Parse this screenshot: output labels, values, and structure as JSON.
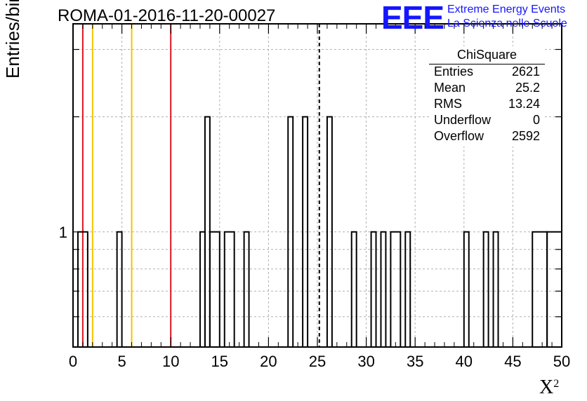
{
  "title": "ROMA-01-2016-11-20-00027",
  "logo": {
    "mark": "EEE",
    "line1": "Extreme Energy Events",
    "line2": "La Scienza nelle Scuole",
    "color": "#1515ff"
  },
  "stats_box": {
    "title": "ChiSquare",
    "rows": [
      {
        "key": "Entries",
        "value": "2621"
      },
      {
        "key": "Mean",
        "value": "25.2"
      },
      {
        "key": "RMS",
        "value": "13.24"
      },
      {
        "key": "Underflow",
        "value": "0"
      },
      {
        "key": "Overflow",
        "value": "2592"
      }
    ]
  },
  "chart_data": {
    "type": "histogram",
    "title": "ROMA-01-2016-11-20-00027",
    "xlabel": "X",
    "xlabel_superscript": "2",
    "ylabel": "Entries/bin",
    "xlim": [
      0,
      50
    ],
    "ylim": [
      0.5,
      3.5
    ],
    "yscale": "log",
    "grid": true,
    "x_ticks": [
      "0",
      "5",
      "10",
      "15",
      "20",
      "25",
      "30",
      "35",
      "40",
      "45",
      "50"
    ],
    "y_tick_labels": [
      "1"
    ],
    "bins": [
      {
        "x0": 0.5,
        "x1": 1.5,
        "count": 1
      },
      {
        "x0": 4.5,
        "x1": 5.0,
        "count": 1
      },
      {
        "x0": 13.0,
        "x1": 13.5,
        "count": 1
      },
      {
        "x0": 13.5,
        "x1": 14.0,
        "count": 2
      },
      {
        "x0": 14.0,
        "x1": 15.0,
        "count": 1
      },
      {
        "x0": 15.5,
        "x1": 16.5,
        "count": 1
      },
      {
        "x0": 17.5,
        "x1": 18.0,
        "count": 1
      },
      {
        "x0": 22.0,
        "x1": 22.5,
        "count": 2
      },
      {
        "x0": 23.5,
        "x1": 24.0,
        "count": 2
      },
      {
        "x0": 26.0,
        "x1": 26.5,
        "count": 2
      },
      {
        "x0": 28.5,
        "x1": 29.0,
        "count": 1
      },
      {
        "x0": 30.5,
        "x1": 31.0,
        "count": 1
      },
      {
        "x0": 31.5,
        "x1": 32.0,
        "count": 1
      },
      {
        "x0": 32.5,
        "x1": 33.5,
        "count": 1
      },
      {
        "x0": 34.0,
        "x1": 34.5,
        "count": 1
      },
      {
        "x0": 40.0,
        "x1": 40.5,
        "count": 1
      },
      {
        "x0": 42.0,
        "x1": 42.5,
        "count": 1
      },
      {
        "x0": 43.0,
        "x1": 43.5,
        "count": 1
      },
      {
        "x0": 47.0,
        "x1": 48.5,
        "count": 1
      },
      {
        "x0": 48.5,
        "x1": 50.0,
        "count": 1
      }
    ],
    "vertical_lines": [
      {
        "x": 1.0,
        "color": "#e0141e",
        "style": "solid"
      },
      {
        "x": 2.0,
        "color": "#f5c300",
        "style": "solid"
      },
      {
        "x": 6.0,
        "color": "#f5c300",
        "style": "solid"
      },
      {
        "x": 10.0,
        "color": "#e0141e",
        "style": "solid"
      },
      {
        "x": 25.2,
        "color": "#000000",
        "style": "dashed"
      }
    ],
    "stats": {
      "name": "ChiSquare",
      "entries": 2621,
      "mean": 25.2,
      "rms": 13.24,
      "underflow": 0,
      "overflow": 2592
    }
  }
}
